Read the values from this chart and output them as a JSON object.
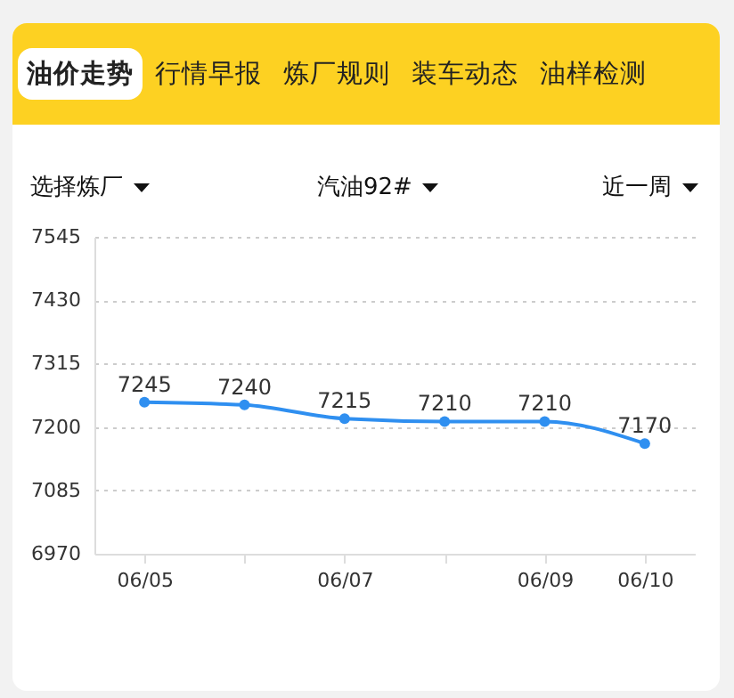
{
  "chart_data": {
    "type": "line",
    "annotations": [
      "油价走势",
      "行情早报",
      "炼厂规则",
      "装车动态",
      "油样检测",
      "选择炼厂",
      "汽油92#",
      "近一周"
    ],
    "categories": [
      "06/05",
      null,
      "06/07",
      null,
      "06/09",
      "06/10"
    ],
    "series": [
      {
        "color": "#2f8ff0",
        "values": [
          7245,
          7240,
          7215,
          7210,
          7210,
          7170
        ]
      }
    ],
    "ylim": [
      6970,
      7545
    ],
    "yticks": [
      6970,
      7085,
      7200,
      7315,
      7430,
      7545
    ],
    "grid": "y",
    "legend": false,
    "marker": "circle",
    "line_style": "solid",
    "data_labels": true
  }
}
